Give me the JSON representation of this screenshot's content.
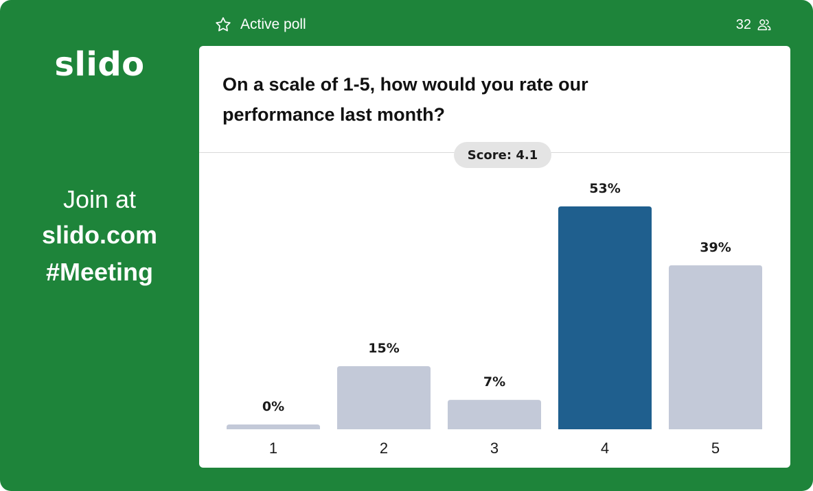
{
  "brand": {
    "logo_text": "slido"
  },
  "join": {
    "line1": "Join at",
    "url": "slido.com",
    "code": "#Meeting"
  },
  "topbar": {
    "status_label": "Active poll",
    "status_icon": "star-icon",
    "participant_count": "32",
    "participants_icon": "users-icon"
  },
  "poll": {
    "question": "On a scale of 1-5, how would you rate our performance last month?",
    "score_label": "Score: 4.1"
  },
  "colors": {
    "background": "#1e843a",
    "bar_default": "#c3c9d8",
    "bar_highlight": "#1f5f8e"
  },
  "chart_data": {
    "type": "bar",
    "categories": [
      "1",
      "2",
      "3",
      "4",
      "5"
    ],
    "values": [
      0,
      15,
      7,
      53,
      39
    ],
    "value_labels": [
      "0%",
      "15%",
      "7%",
      "53%",
      "39%"
    ],
    "highlight_index": 3,
    "unit": "%",
    "title": "",
    "xlabel": "",
    "ylabel": "",
    "ylim": [
      0,
      53
    ],
    "grid": false,
    "legend": "none"
  }
}
